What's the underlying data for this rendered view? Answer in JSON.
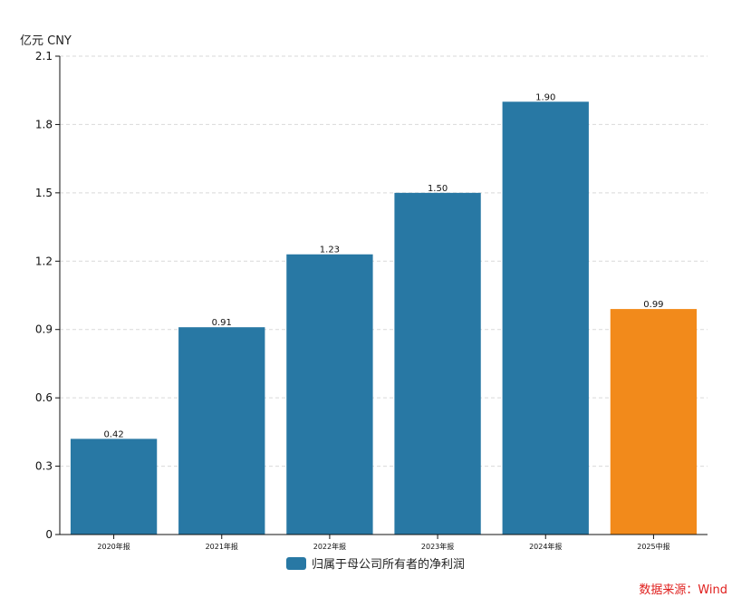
{
  "chart_data": {
    "type": "bar",
    "title": "",
    "unit_label": "亿元 CNY",
    "categories": [
      "2020年报",
      "2021年报",
      "2022年报",
      "2023年报",
      "2024年报",
      "2025中报"
    ],
    "series": [
      {
        "name": "归属于母公司所有者的净利润",
        "values": [
          0.42,
          0.91,
          1.23,
          1.5,
          1.9,
          0.99
        ],
        "value_labels": [
          "0.42",
          "0.91",
          "1.23",
          "1.50",
          "1.90",
          "0.99"
        ]
      }
    ],
    "bar_colors": [
      "#2878a4",
      "#2878a4",
      "#2878a4",
      "#2878a4",
      "#2878a4",
      "#f28a1b"
    ],
    "ylim": [
      0,
      2.1
    ],
    "yticks": [
      0,
      0.3,
      0.6,
      0.9,
      1.2,
      1.5,
      1.8,
      2.1
    ],
    "ytick_labels": [
      "0",
      "0.3",
      "0.6",
      "0.9",
      "1.2",
      "1.5",
      "1.8",
      "2.1"
    ],
    "grid": true,
    "legend_position": "bottom-center"
  },
  "footer": {
    "source": "数据来源：Wind"
  },
  "colors": {
    "primary_bar": "#2878a4",
    "highlight_bar": "#f28a1b",
    "source_text": "#e0201e"
  }
}
